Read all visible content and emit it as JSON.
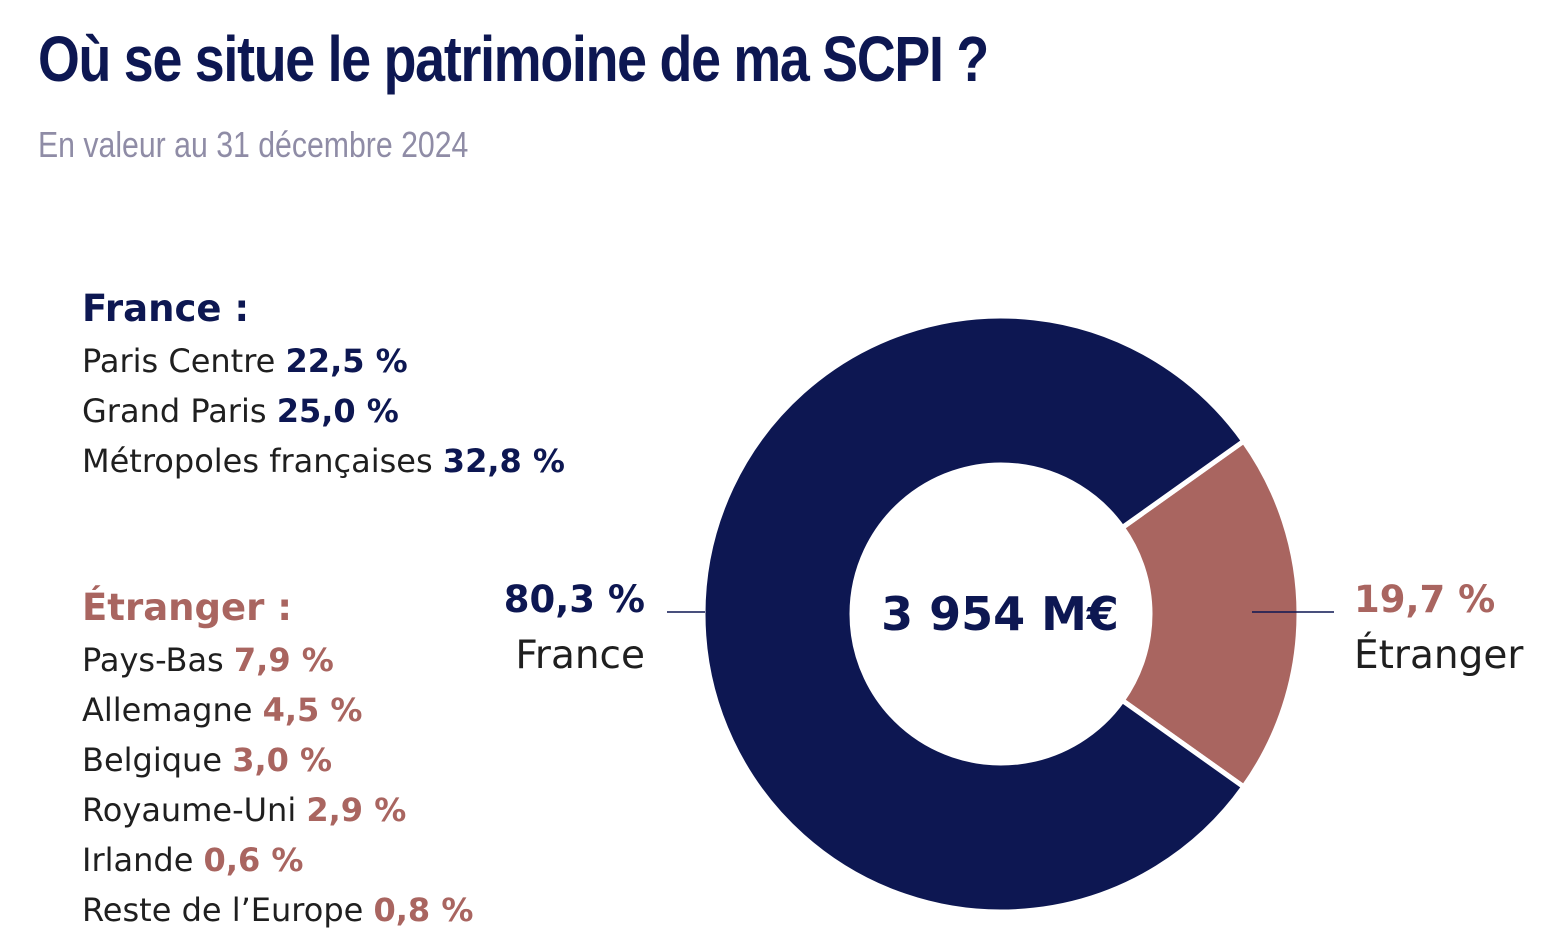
{
  "title": "Où se situe le patrimoine de ma SCPI ?",
  "subtitle": "En valeur au 31 décembre 2024",
  "france": {
    "heading": "France :",
    "items": [
      {
        "label": "Paris Centre",
        "value": "22,5 %"
      },
      {
        "label": "Grand Paris",
        "value": "25,0 %"
      },
      {
        "label": "Métropoles françaises",
        "value": "32,8 %"
      }
    ]
  },
  "etranger": {
    "heading": "Étranger :",
    "items": [
      {
        "label": "Pays-Bas",
        "value": "7,9 %"
      },
      {
        "label": "Allemagne",
        "value": "4,5 %"
      },
      {
        "label": "Belgique",
        "value": "3,0 %"
      },
      {
        "label": "Royaume-Uni",
        "value": "2,9 %"
      },
      {
        "label": "Irlande",
        "value": "0,6 %"
      },
      {
        "label": "Reste de l’Europe",
        "value": "0,8 %"
      }
    ]
  },
  "colors": {
    "navy": "#0d1752",
    "rose": "#a96560",
    "text": "#1f1f1f",
    "subtitle": "#8f8ca6"
  },
  "chart_data": {
    "type": "pie",
    "donut": true,
    "center_label": "3 954 M€",
    "slices": [
      {
        "name": "France",
        "value": 80.3,
        "label": "80,3 %",
        "color": "#0d1752"
      },
      {
        "name": "Étranger",
        "value": 19.7,
        "label": "19,7 %",
        "color": "#a96560"
      }
    ]
  }
}
